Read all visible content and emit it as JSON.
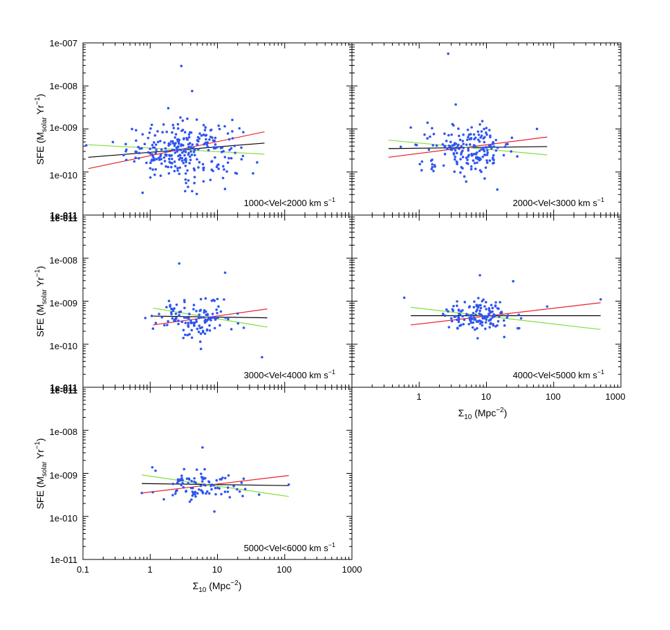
{
  "figure": {
    "x_axis_title_main": "Σ",
    "x_axis_title_sub": "10",
    "x_axis_title_units": " (Mpc",
    "x_axis_title_exp": "−2",
    "x_axis_title_close": ")",
    "y_axis_title_main": "SFE (M",
    "y_axis_title_sub": "solar",
    "y_axis_title_mid": " Yr",
    "y_axis_title_exp": "−1",
    "y_axis_title_close": ")",
    "y_tick_labels": [
      "1e-011",
      "1e-010",
      "1e-009",
      "1e-008",
      "1e-007"
    ],
    "x_tick_labels": [
      "0.1",
      "1",
      "10",
      "100",
      "1000"
    ],
    "line_colors": {
      "points": "#2f55f0",
      "black": "#000000",
      "red": "#e8202a",
      "green": "#7fe03a"
    }
  },
  "chart_data": [
    {
      "type": "scatter",
      "panel": "1000-2000",
      "label_text": "1000<Vel<2000 km s",
      "label_exp": "−1",
      "xscale": "log",
      "yscale": "log",
      "xlim": [
        0.1,
        1000
      ],
      "ylim": [
        1e-11,
        1e-07
      ],
      "xlabel": "Σ10 (Mpc−2)",
      "ylabel": "SFE (Msolar Yr−1)",
      "point_count": 280,
      "x_center_log": 0.5,
      "x_spread_log": 0.42,
      "y_center_log": -9.5,
      "y_spread_log": 0.33,
      "outliers": [
        [
          2.9,
          2.9e-08
        ],
        [
          4.2,
          7.6e-09
        ],
        [
          0.77,
          3.3e-11
        ],
        [
          4.2,
          3.6e-11
        ]
      ],
      "fit_lines": [
        {
          "name": "black",
          "x": [
            0.12,
            50
          ],
          "y": [
            2.2e-10,
            4.7e-10
          ]
        },
        {
          "name": "red",
          "x": [
            0.12,
            50
          ],
          "y": [
            1.2e-10,
            8.6e-10
          ]
        },
        {
          "name": "green",
          "x": [
            0.12,
            50
          ],
          "y": [
            4.3e-10,
            2.6e-10
          ]
        }
      ]
    },
    {
      "type": "scatter",
      "panel": "2000-3000",
      "label_text": "2000<Vel<3000 km s",
      "label_exp": "−1",
      "xscale": "log",
      "yscale": "log",
      "xlim": [
        0.1,
        1000
      ],
      "ylim": [
        1e-11,
        1e-07
      ],
      "xlabel": "Σ10 (Mpc−2)",
      "ylabel": "SFE (Msolar Yr−1)",
      "point_count": 190,
      "x_center_log": 0.75,
      "x_spread_log": 0.33,
      "y_center_log": -9.45,
      "y_spread_log": 0.27,
      "outliers": [
        [
          2.7,
          5.6e-08
        ],
        [
          3.5,
          3.7e-09
        ],
        [
          5.0,
          6e-11
        ]
      ],
      "fit_lines": [
        {
          "name": "black",
          "x": [
            0.35,
            80
          ],
          "y": [
            3.5e-10,
            3.9e-10
          ]
        },
        {
          "name": "red",
          "x": [
            0.35,
            80
          ],
          "y": [
            2.2e-10,
            6.5e-10
          ]
        },
        {
          "name": "green",
          "x": [
            0.35,
            80
          ],
          "y": [
            5.5e-10,
            2.5e-10
          ]
        }
      ]
    },
    {
      "type": "scatter",
      "panel": "3000-4000",
      "label_text": "3000<Vel<4000 km s",
      "label_exp": "−1",
      "xscale": "log",
      "yscale": "log",
      "xlim": [
        0.1,
        1000
      ],
      "ylim": [
        1e-11,
        1e-07
      ],
      "xlabel": "Σ10 (Mpc−2)",
      "ylabel": "SFE (Msolar Yr−1)",
      "point_count": 130,
      "x_center_log": 0.68,
      "x_spread_log": 0.28,
      "y_center_log": -9.4,
      "y_spread_log": 0.22,
      "outliers": [
        [
          2.7,
          7.5e-09
        ],
        [
          13.0,
          4.6e-09
        ],
        [
          46.0,
          5e-11
        ],
        [
          1.1,
          2.3e-10
        ]
      ],
      "fit_lines": [
        {
          "name": "black",
          "x": [
            1.1,
            55
          ],
          "y": [
            4.5e-10,
            4.1e-10
          ]
        },
        {
          "name": "red",
          "x": [
            1.1,
            55
          ],
          "y": [
            2.8e-10,
            6.6e-10
          ]
        },
        {
          "name": "green",
          "x": [
            1.1,
            55
          ],
          "y": [
            6.9e-10,
            2.5e-10
          ]
        }
      ]
    },
    {
      "type": "scatter",
      "panel": "4000-5000",
      "label_text": "4000<Vel<5000 km s",
      "label_exp": "−1",
      "xscale": "log",
      "yscale": "log",
      "xlim": [
        0.1,
        1000
      ],
      "ylim": [
        1e-11,
        1e-07
      ],
      "xlabel": "Σ10 (Mpc−2)",
      "ylabel": "SFE (Msolar Yr−1)",
      "point_count": 140,
      "x_center_log": 0.9,
      "x_spread_log": 0.25,
      "y_center_log": -9.35,
      "y_spread_log": 0.2,
      "outliers": [
        [
          0.6,
          1.2e-09
        ],
        [
          8.0,
          4e-09
        ],
        [
          25.0,
          2.9e-09
        ],
        [
          500.0,
          1.1e-09
        ],
        [
          80.0,
          7.5e-10
        ]
      ],
      "fit_lines": [
        {
          "name": "black",
          "x": [
            0.75,
            500
          ],
          "y": [
            4.6e-10,
            4.6e-10
          ]
        },
        {
          "name": "red",
          "x": [
            0.75,
            500
          ],
          "y": [
            2.8e-10,
            9.2e-10
          ]
        },
        {
          "name": "green",
          "x": [
            0.75,
            500
          ],
          "y": [
            7.2e-10,
            2.2e-10
          ]
        }
      ]
    },
    {
      "type": "scatter",
      "panel": "5000-6000",
      "label_text": "5000<Vel<6000 km s",
      "label_exp": "−1",
      "xscale": "log",
      "yscale": "log",
      "xlim": [
        0.1,
        1000
      ],
      "ylim": [
        1e-11,
        1e-07
      ],
      "xlabel": "Σ10 (Mpc−2)",
      "ylabel": "SFE (Msolar Yr−1)",
      "point_count": 95,
      "x_center_log": 0.75,
      "x_spread_log": 0.32,
      "y_center_log": -9.28,
      "y_spread_log": 0.18,
      "outliers": [
        [
          6.0,
          4e-09
        ],
        [
          9.0,
          1.3e-10
        ],
        [
          115.0,
          5.5e-10
        ],
        [
          0.75,
          3.5e-10
        ]
      ],
      "fit_lines": [
        {
          "name": "black",
          "x": [
            0.75,
            115
          ],
          "y": [
            5.8e-10,
            5.2e-10
          ]
        },
        {
          "name": "red",
          "x": [
            0.75,
            115
          ],
          "y": [
            3.5e-10,
            8.9e-10
          ]
        },
        {
          "name": "green",
          "x": [
            0.75,
            115
          ],
          "y": [
            9.2e-10,
            2.9e-10
          ]
        }
      ]
    }
  ]
}
